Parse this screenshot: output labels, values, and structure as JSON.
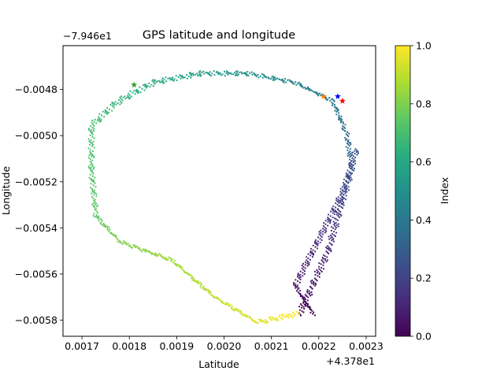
{
  "chart_data": {
    "type": "scatter",
    "title": "GPS latitude and longitude",
    "xlabel": "Latitude",
    "ylabel": "Longitude",
    "x_offset_label": "+4.378e1",
    "y_offset_label": "−7.946e1",
    "xlim": [
      0.00166,
      0.00232
    ],
    "ylim": [
      -0.00587,
      -0.00461
    ],
    "x_ticks": [
      0.0017,
      0.0018,
      0.0019,
      0.002,
      0.0021,
      0.0022,
      0.0023
    ],
    "x_tick_labels": [
      "0.0017",
      "0.0018",
      "0.0019",
      "0.0020",
      "0.0021",
      "0.0022",
      "0.0023"
    ],
    "y_ticks": [
      -0.0058,
      -0.0056,
      -0.0054,
      -0.0052,
      -0.005,
      -0.0048
    ],
    "y_tick_labels": [
      "−0.0058",
      "−0.0056",
      "−0.0054",
      "−0.0052",
      "−0.0050",
      "−0.0048"
    ],
    "grid": false,
    "colormap": "viridis",
    "colorbar": {
      "label": "Index",
      "range": [
        0.0,
        1.0
      ],
      "ticks": [
        0.0,
        0.2,
        0.4,
        0.6,
        0.8,
        1.0
      ],
      "tick_labels": [
        "0.0",
        "0.2",
        "0.4",
        "0.6",
        "0.8",
        "1.0"
      ]
    },
    "track": [
      {
        "x": 0.00216,
        "y": -0.00577,
        "c": 0.0
      },
      {
        "x": 0.00222,
        "y": -0.0055,
        "c": 0.1
      },
      {
        "x": 0.00225,
        "y": -0.00528,
        "c": 0.2
      },
      {
        "x": 0.00227,
        "y": -0.00514,
        "c": 0.3
      },
      {
        "x": 0.00226,
        "y": -0.005,
        "c": 0.35
      },
      {
        "x": 0.00223,
        "y": -0.00485,
        "c": 0.4
      },
      {
        "x": 0.00215,
        "y": -0.00477,
        "c": 0.45
      },
      {
        "x": 0.00205,
        "y": -0.00473,
        "c": 0.5
      },
      {
        "x": 0.00195,
        "y": -0.00473,
        "c": 0.55
      },
      {
        "x": 0.00185,
        "y": -0.00477,
        "c": 0.6
      },
      {
        "x": 0.00177,
        "y": -0.00486,
        "c": 0.65
      },
      {
        "x": 0.00172,
        "y": -0.00496,
        "c": 0.7
      },
      {
        "x": 0.00172,
        "y": -0.00515,
        "c": 0.72
      },
      {
        "x": 0.00173,
        "y": -0.00535,
        "c": 0.75
      },
      {
        "x": 0.00178,
        "y": -0.00546,
        "c": 0.8
      },
      {
        "x": 0.00189,
        "y": -0.00554,
        "c": 0.85
      },
      {
        "x": 0.00198,
        "y": -0.0057,
        "c": 0.9
      },
      {
        "x": 0.00207,
        "y": -0.00581,
        "c": 0.95
      },
      {
        "x": 0.00216,
        "y": -0.00577,
        "c": 1.0
      }
    ],
    "return_path": [
      {
        "x": 0.00228,
        "y": -0.00506,
        "c": 0.25
      },
      {
        "x": 0.00225,
        "y": -0.00525,
        "c": 0.18
      },
      {
        "x": 0.00215,
        "y": -0.00565,
        "c": 0.06
      },
      {
        "x": 0.00219,
        "y": -0.00578,
        "c": 0.0
      }
    ],
    "markers": [
      {
        "x": 0.00181,
        "y": -0.00478,
        "color": "#2ca02c",
        "shape": "star"
      },
      {
        "x": 0.00221,
        "y": -0.00483,
        "color": "#ff7f0e",
        "shape": "star"
      },
      {
        "x": 0.00224,
        "y": -0.00483,
        "color": "#0000ff",
        "shape": "star"
      },
      {
        "x": 0.00225,
        "y": -0.00485,
        "color": "#ff0000",
        "shape": "star"
      }
    ]
  }
}
